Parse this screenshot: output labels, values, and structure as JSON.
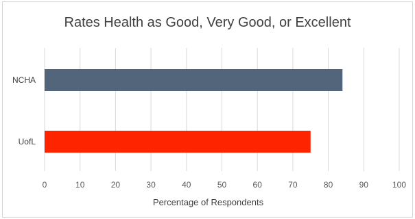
{
  "chart_data": {
    "type": "bar",
    "orientation": "horizontal",
    "title": "Rates Health as Good, Very Good, or Excellent",
    "xlabel": "Percentage of Respondents",
    "ylabel": "",
    "categories": [
      "NCHA",
      "UofL"
    ],
    "values": [
      84,
      75
    ],
    "colors": [
      "#53657b",
      "#ff2400"
    ],
    "xlim": [
      0,
      100
    ],
    "xticks": [
      "0",
      "10",
      "20",
      "30",
      "40",
      "50",
      "60",
      "70",
      "80",
      "90",
      "100"
    ],
    "grid": "vertical",
    "legend": "none"
  }
}
